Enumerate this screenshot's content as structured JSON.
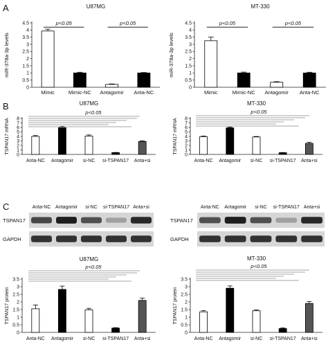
{
  "figure": {
    "panel_labels": [
      "A",
      "B",
      "C"
    ]
  },
  "colors": {
    "white_bar": "#ffffff",
    "black_bar": "#000000",
    "gray_bar": "#555555",
    "axis": "#222222",
    "bracket": "#888888",
    "blot_bg": "#d6d6d6",
    "blot_band": "#1a1a1a"
  },
  "chart_data": [
    {
      "id": "A-U87MG",
      "type": "bar",
      "title": "U87MG",
      "ylabel": "miR-378a-3p levels",
      "ylim": [
        0,
        4.5
      ],
      "yticks": [
        0,
        0.5,
        1,
        1.5,
        2,
        2.5,
        3,
        3.5,
        4,
        4.5
      ],
      "ytick_labels": [
        "0",
        "0.5",
        "1",
        "1.5",
        "2",
        "2.5",
        "3",
        "3.5",
        "4",
        "4.5"
      ],
      "categories": [
        "Mimic",
        "Mimic-NC",
        "Antagomir",
        "Anta-NC"
      ],
      "values": [
        3.93,
        1.0,
        0.2,
        1.0
      ],
      "errors": [
        0.13,
        0.05,
        0.03,
        0.03
      ],
      "colors": [
        "white",
        "black",
        "white",
        "black"
      ],
      "annotations": [
        {
          "label": "p<0.05",
          "from": 0,
          "to": 1,
          "level": 4.2
        },
        {
          "label": "p<0.05",
          "from": 2,
          "to": 3,
          "level": 4.2
        }
      ]
    },
    {
      "id": "A-MT330",
      "type": "bar",
      "title": "MT-330",
      "ylabel": "miR-378a-3p levels",
      "ylim": [
        0,
        4.5
      ],
      "yticks": [
        0,
        0.5,
        1,
        1.5,
        2,
        2.5,
        3,
        3.5,
        4,
        4.5
      ],
      "ytick_labels": [
        "0",
        "0.5",
        "1",
        "1.5",
        "2",
        "2.5",
        "3",
        "3.5",
        "4",
        "4.5"
      ],
      "categories": [
        "Mimic",
        "Mimic-NC",
        "Antagomir",
        "Anta-NC"
      ],
      "values": [
        3.25,
        1.0,
        0.35,
        1.0
      ],
      "errors": [
        0.25,
        0.06,
        0.04,
        0.05
      ],
      "colors": [
        "white",
        "black",
        "white",
        "black"
      ],
      "annotations": [
        {
          "label": "p<0.05",
          "from": 0,
          "to": 1,
          "level": 4.2
        },
        {
          "label": "p<0.05",
          "from": 2,
          "to": 3,
          "level": 4.2
        }
      ]
    },
    {
      "id": "B-U87MG",
      "type": "bar",
      "title": "U87MG",
      "ylabel": "TSPAN17 mRNA",
      "ylim": [
        0,
        8
      ],
      "yticks": [
        0,
        1,
        2,
        3,
        4,
        5,
        6,
        7,
        8
      ],
      "ytick_labels": [
        "0",
        "1",
        "2",
        "3",
        "4",
        "5",
        "6",
        "7",
        "8"
      ],
      "categories": [
        "Anta-NC",
        "Antagomir",
        "si-NC",
        "si-TSPAN17",
        "Anta+si"
      ],
      "values": [
        4.0,
        5.95,
        4.08,
        0.4,
        2.88
      ],
      "errors": [
        0.2,
        0.3,
        0.25,
        0.04,
        0.15
      ],
      "colors": [
        "white",
        "black",
        "white",
        "black",
        "gray"
      ],
      "significance": "p<0.05"
    },
    {
      "id": "B-MT330",
      "type": "bar",
      "title": "MT-330",
      "ylabel": "TSPAN17 mRNA",
      "ylim": [
        0,
        8
      ],
      "yticks": [
        0,
        1,
        2,
        3,
        4,
        5,
        6,
        7,
        8
      ],
      "ytick_labels": [
        "0",
        "1",
        "2",
        "3",
        "4",
        "5",
        "6",
        "7",
        "8"
      ],
      "categories": [
        "Anta-NC",
        "Antagomir",
        "si-NC",
        "si-TSPAN17",
        "Anta+si"
      ],
      "values": [
        3.95,
        5.9,
        3.88,
        0.38,
        2.45
      ],
      "errors": [
        0.15,
        0.2,
        0.1,
        0.05,
        0.25
      ],
      "colors": [
        "white",
        "black",
        "white",
        "black",
        "gray"
      ],
      "significance": "p<0.05"
    },
    {
      "id": "C-U87MG",
      "type": "bar",
      "title": "U87MG",
      "ylabel": "TSPAN17 protein",
      "ylim": [
        0,
        3.5
      ],
      "yticks": [
        0,
        0.5,
        1,
        1.5,
        2,
        2.5,
        3,
        3.5
      ],
      "ytick_labels": [
        "0",
        "0.5",
        "1",
        "1.5",
        "2",
        "2.5",
        "3",
        "3.5"
      ],
      "categories": [
        "Anta-NC",
        "Antagomir",
        "si-NC",
        "si-TSPAN17",
        "Anta+si"
      ],
      "values": [
        1.55,
        2.82,
        1.48,
        0.28,
        2.1
      ],
      "errors": [
        0.25,
        0.22,
        0.1,
        0.03,
        0.15
      ],
      "colors": [
        "white",
        "black",
        "white",
        "black",
        "gray"
      ],
      "significance": "p<0.05"
    },
    {
      "id": "C-MT330",
      "type": "bar",
      "title": "MT-330",
      "ylabel": "TSPAN17 protein",
      "ylim": [
        0,
        3.5
      ],
      "yticks": [
        0,
        0.5,
        1,
        1.5,
        2,
        2.5,
        3,
        3.5
      ],
      "ytick_labels": [
        "0",
        "0.5",
        "1",
        "1.5",
        "2",
        "2.5",
        "3",
        "3.5"
      ],
      "categories": [
        "Anta-NC",
        "Antagomir",
        "si-NC",
        "si-TSPAN17",
        "Anta+si"
      ],
      "values": [
        1.35,
        2.9,
        1.42,
        0.25,
        1.9
      ],
      "errors": [
        0.08,
        0.15,
        0.05,
        0.04,
        0.12
      ],
      "colors": [
        "white",
        "black",
        "white",
        "black",
        "gray"
      ],
      "significance": "p<0.05"
    }
  ],
  "blots": [
    {
      "id": "blot-U87MG",
      "lane_labels": [
        "Anta-NC",
        "Antagomir",
        "si-NC",
        "si-TSPAN17",
        "Anta+si"
      ],
      "rows": [
        {
          "label": "TSPAN17",
          "intensity": [
            0.75,
            0.95,
            0.7,
            0.3,
            0.9
          ]
        },
        {
          "label": "GAPDH",
          "intensity": [
            0.85,
            0.85,
            0.85,
            0.85,
            0.85
          ]
        }
      ]
    },
    {
      "id": "blot-MT330",
      "lane_labels": [
        "Anta-NC",
        "Antagomir",
        "si-NC",
        "si-TSPAN17",
        "Anta+si"
      ],
      "rows": [
        {
          "label": "TSPAN17",
          "intensity": [
            0.7,
            0.95,
            0.7,
            0.3,
            0.9
          ]
        },
        {
          "label": "GAPDH",
          "intensity": [
            0.85,
            0.85,
            0.85,
            0.85,
            0.85
          ]
        }
      ]
    }
  ]
}
